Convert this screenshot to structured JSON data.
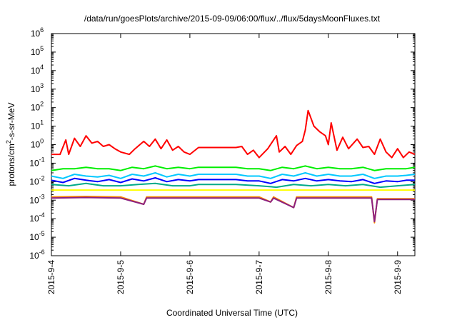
{
  "chart_data": {
    "type": "line",
    "title": "/data/run/goesPlots/archive/2015-09-09/06:00/flux/../flux/5daysMoonFluxes.txt",
    "xlabel": "Coordinated Universal Time (UTC)",
    "ylabel_main": "protons/cm",
    "ylabel_sup": "2",
    "ylabel_rest": "-s-sr-MeV",
    "yscale": "log",
    "ylim": [
      1e-06,
      1000000.0
    ],
    "y_ticks": [
      {
        "base": "10",
        "exp": "-6",
        "value": 1e-06
      },
      {
        "base": "10",
        "exp": "-5",
        "value": 1e-05
      },
      {
        "base": "10",
        "exp": "-4",
        "value": 0.0001
      },
      {
        "base": "10",
        "exp": "-3",
        "value": 0.001
      },
      {
        "base": "10",
        "exp": "-2",
        "value": 0.01
      },
      {
        "base": "10",
        "exp": "-1",
        "value": 0.1
      },
      {
        "base": "10",
        "exp": "0",
        "value": 1
      },
      {
        "base": "10",
        "exp": "1",
        "value": 10
      },
      {
        "base": "10",
        "exp": "2",
        "value": 100
      },
      {
        "base": "10",
        "exp": "3",
        "value": 1000
      },
      {
        "base": "10",
        "exp": "4",
        "value": 10000
      },
      {
        "base": "10",
        "exp": "5",
        "value": 100000
      },
      {
        "base": "10",
        "exp": "6",
        "value": 1000000
      }
    ],
    "xlim": [
      "2015-09-04 00:00",
      "2015-09-09 06:00"
    ],
    "x_ticks": [
      {
        "label": "2015-9-4",
        "date": "2015-09-04"
      },
      {
        "label": "2015-9-5",
        "date": "2015-09-05"
      },
      {
        "label": "2015-9-6",
        "date": "2015-09-06"
      },
      {
        "label": "2015-9-7",
        "date": "2015-09-07"
      },
      {
        "label": "2015-9-8",
        "date": "2015-09-08"
      },
      {
        "label": "2015-9-9",
        "date": "2015-09-09"
      }
    ],
    "grid": false,
    "series": [
      {
        "color": "#ff0000",
        "points": [
          [
            "2015-09-04 00:00",
            0.3
          ],
          [
            "2015-09-04 03:00",
            0.3
          ],
          [
            "2015-09-04 05:00",
            1.8
          ],
          [
            "2015-09-04 06:00",
            0.3
          ],
          [
            "2015-09-04 08:00",
            2.2
          ],
          [
            "2015-09-04 10:00",
            0.8
          ],
          [
            "2015-09-04 12:00",
            3.0
          ],
          [
            "2015-09-04 14:00",
            1.2
          ],
          [
            "2015-09-04 16:00",
            1.5
          ],
          [
            "2015-09-04 18:00",
            0.8
          ],
          [
            "2015-09-04 20:00",
            1.0
          ],
          [
            "2015-09-04 22:00",
            0.6
          ],
          [
            "2015-09-05 00:00",
            0.4
          ],
          [
            "2015-09-05 03:00",
            0.3
          ],
          [
            "2015-09-05 05:00",
            0.6
          ],
          [
            "2015-09-05 08:00",
            1.5
          ],
          [
            "2015-09-05 10:00",
            0.8
          ],
          [
            "2015-09-05 12:00",
            2.0
          ],
          [
            "2015-09-05 14:00",
            0.6
          ],
          [
            "2015-09-05 16:00",
            1.8
          ],
          [
            "2015-09-05 18:00",
            0.5
          ],
          [
            "2015-09-05 20:00",
            0.8
          ],
          [
            "2015-09-05 22:00",
            0.4
          ],
          [
            "2015-09-06 00:00",
            0.3
          ],
          [
            "2015-09-06 03:00",
            0.7
          ],
          [
            "2015-09-06 16:00",
            0.7
          ],
          [
            "2015-09-06 18:00",
            0.8
          ],
          [
            "2015-09-06 20:00",
            0.3
          ],
          [
            "2015-09-06 22:00",
            0.5
          ],
          [
            "2015-09-07 00:00",
            0.2
          ],
          [
            "2015-09-07 03:00",
            0.6
          ],
          [
            "2015-09-07 06:00",
            3.0
          ],
          [
            "2015-09-07 07:00",
            0.4
          ],
          [
            "2015-09-07 09:00",
            0.8
          ],
          [
            "2015-09-07 11:00",
            0.3
          ],
          [
            "2015-09-07 13:00",
            0.9
          ],
          [
            "2015-09-07 15:00",
            1.5
          ],
          [
            "2015-09-07 16:00",
            6.0
          ],
          [
            "2015-09-07 17:00",
            70
          ],
          [
            "2015-09-07 19:00",
            10
          ],
          [
            "2015-09-07 21:00",
            5.0
          ],
          [
            "2015-09-07 23:00",
            3.0
          ],
          [
            "2015-09-08 00:00",
            1.0
          ],
          [
            "2015-09-08 01:00",
            15
          ],
          [
            "2015-09-08 03:00",
            0.5
          ],
          [
            "2015-09-08 05:00",
            2.5
          ],
          [
            "2015-09-08 07:00",
            0.6
          ],
          [
            "2015-09-08 10:00",
            2.0
          ],
          [
            "2015-09-08 12:00",
            0.7
          ],
          [
            "2015-09-08 14:00",
            0.8
          ],
          [
            "2015-09-08 16:00",
            0.3
          ],
          [
            "2015-09-08 18:00",
            2.0
          ],
          [
            "2015-09-08 20:00",
            0.4
          ],
          [
            "2015-09-08 22:00",
            0.2
          ],
          [
            "2015-09-09 00:00",
            0.6
          ],
          [
            "2015-09-09 02:00",
            0.2
          ],
          [
            "2015-09-09 04:00",
            0.4
          ],
          [
            "2015-09-09 06:00",
            0.3
          ]
        ]
      },
      {
        "color": "#00ee00",
        "points": [
          [
            "2015-09-04 00:00",
            0.04
          ],
          [
            "2015-09-04 04:00",
            0.05
          ],
          [
            "2015-09-04 08:00",
            0.05
          ],
          [
            "2015-09-04 12:00",
            0.06
          ],
          [
            "2015-09-04 16:00",
            0.05
          ],
          [
            "2015-09-04 20:00",
            0.05
          ],
          [
            "2015-09-05 00:00",
            0.04
          ],
          [
            "2015-09-05 04:00",
            0.06
          ],
          [
            "2015-09-05 08:00",
            0.05
          ],
          [
            "2015-09-05 12:00",
            0.07
          ],
          [
            "2015-09-05 16:00",
            0.05
          ],
          [
            "2015-09-05 20:00",
            0.06
          ],
          [
            "2015-09-06 00:00",
            0.05
          ],
          [
            "2015-09-06 03:00",
            0.06
          ],
          [
            "2015-09-06 16:00",
            0.06
          ],
          [
            "2015-09-06 20:00",
            0.05
          ],
          [
            "2015-09-07 00:00",
            0.05
          ],
          [
            "2015-09-07 04:00",
            0.04
          ],
          [
            "2015-09-07 08:00",
            0.06
          ],
          [
            "2015-09-07 12:00",
            0.05
          ],
          [
            "2015-09-07 16:00",
            0.07
          ],
          [
            "2015-09-07 20:00",
            0.05
          ],
          [
            "2015-09-08 00:00",
            0.06
          ],
          [
            "2015-09-08 04:00",
            0.05
          ],
          [
            "2015-09-08 08:00",
            0.05
          ],
          [
            "2015-09-08 12:00",
            0.06
          ],
          [
            "2015-09-08 16:00",
            0.04
          ],
          [
            "2015-09-08 20:00",
            0.05
          ],
          [
            "2015-09-09 00:00",
            0.05
          ],
          [
            "2015-09-09 03:00",
            0.05
          ],
          [
            "2015-09-09 06:00",
            0.06
          ]
        ]
      },
      {
        "color": "#00c8ff",
        "points": [
          [
            "2015-09-04 00:00",
            0.02
          ],
          [
            "2015-09-04 04:00",
            0.015
          ],
          [
            "2015-09-04 08:00",
            0.025
          ],
          [
            "2015-09-04 12:00",
            0.02
          ],
          [
            "2015-09-04 16:00",
            0.018
          ],
          [
            "2015-09-04 20:00",
            0.022
          ],
          [
            "2015-09-05 00:00",
            0.015
          ],
          [
            "2015-09-05 04:00",
            0.025
          ],
          [
            "2015-09-05 08:00",
            0.02
          ],
          [
            "2015-09-05 12:00",
            0.03
          ],
          [
            "2015-09-05 16:00",
            0.018
          ],
          [
            "2015-09-05 20:00",
            0.025
          ],
          [
            "2015-09-06 00:00",
            0.02
          ],
          [
            "2015-09-06 03:00",
            0.025
          ],
          [
            "2015-09-06 16:00",
            0.025
          ],
          [
            "2015-09-06 20:00",
            0.02
          ],
          [
            "2015-09-07 00:00",
            0.02
          ],
          [
            "2015-09-07 04:00",
            0.015
          ],
          [
            "2015-09-07 08:00",
            0.025
          ],
          [
            "2015-09-07 12:00",
            0.02
          ],
          [
            "2015-09-07 16:00",
            0.03
          ],
          [
            "2015-09-07 20:00",
            0.02
          ],
          [
            "2015-09-08 00:00",
            0.025
          ],
          [
            "2015-09-08 04:00",
            0.02
          ],
          [
            "2015-09-08 08:00",
            0.02
          ],
          [
            "2015-09-08 12:00",
            0.025
          ],
          [
            "2015-09-08 16:00",
            0.015
          ],
          [
            "2015-09-08 20:00",
            0.02
          ],
          [
            "2015-09-09 00:00",
            0.02
          ],
          [
            "2015-09-09 03:00",
            0.022
          ],
          [
            "2015-09-09 06:00",
            0.025
          ]
        ]
      },
      {
        "color": "#0000ff",
        "points": [
          [
            "2015-09-04 00:00",
            0.012
          ],
          [
            "2015-09-04 04:00",
            0.009
          ],
          [
            "2015-09-04 08:00",
            0.015
          ],
          [
            "2015-09-04 12:00",
            0.012
          ],
          [
            "2015-09-04 16:00",
            0.01
          ],
          [
            "2015-09-04 20:00",
            0.013
          ],
          [
            "2015-09-05 00:00",
            0.009
          ],
          [
            "2015-09-05 04:00",
            0.014
          ],
          [
            "2015-09-05 08:00",
            0.011
          ],
          [
            "2015-09-05 12:00",
            0.016
          ],
          [
            "2015-09-05 16:00",
            0.01
          ],
          [
            "2015-09-05 20:00",
            0.013
          ],
          [
            "2015-09-06 00:00",
            0.011
          ],
          [
            "2015-09-06 03:00",
            0.013
          ],
          [
            "2015-09-06 16:00",
            0.013
          ],
          [
            "2015-09-06 20:00",
            0.011
          ],
          [
            "2015-09-07 00:00",
            0.011
          ],
          [
            "2015-09-07 04:00",
            0.008
          ],
          [
            "2015-09-07 08:00",
            0.013
          ],
          [
            "2015-09-07 12:00",
            0.011
          ],
          [
            "2015-09-07 16:00",
            0.015
          ],
          [
            "2015-09-07 20:00",
            0.011
          ],
          [
            "2015-09-08 00:00",
            0.013
          ],
          [
            "2015-09-08 04:00",
            0.011
          ],
          [
            "2015-09-08 08:00",
            0.01
          ],
          [
            "2015-09-08 12:00",
            0.013
          ],
          [
            "2015-09-08 16:00",
            0.008
          ],
          [
            "2015-09-08 20:00",
            0.011
          ],
          [
            "2015-09-09 00:00",
            0.01
          ],
          [
            "2015-09-09 03:00",
            0.012
          ],
          [
            "2015-09-09 06:00",
            0.012
          ]
        ]
      },
      {
        "color": "#00aa88",
        "points": [
          [
            "2015-09-04 00:00",
            0.007
          ],
          [
            "2015-09-04 06:00",
            0.006
          ],
          [
            "2015-09-04 12:00",
            0.008
          ],
          [
            "2015-09-04 18:00",
            0.006
          ],
          [
            "2015-09-05 00:00",
            0.006
          ],
          [
            "2015-09-05 06:00",
            0.007
          ],
          [
            "2015-09-05 12:00",
            0.008
          ],
          [
            "2015-09-05 18:00",
            0.006
          ],
          [
            "2015-09-06 00:00",
            0.006
          ],
          [
            "2015-09-06 03:00",
            0.007
          ],
          [
            "2015-09-06 16:00",
            0.007
          ],
          [
            "2015-09-07 00:00",
            0.006
          ],
          [
            "2015-09-07 06:00",
            0.005
          ],
          [
            "2015-09-07 12:00",
            0.007
          ],
          [
            "2015-09-07 18:00",
            0.006
          ],
          [
            "2015-09-08 00:00",
            0.007
          ],
          [
            "2015-09-08 06:00",
            0.006
          ],
          [
            "2015-09-08 12:00",
            0.007
          ],
          [
            "2015-09-08 18:00",
            0.005
          ],
          [
            "2015-09-09 00:00",
            0.006
          ],
          [
            "2015-09-09 06:00",
            0.007
          ]
        ]
      },
      {
        "color": "#ffff00",
        "points": [
          [
            "2015-09-04 00:00",
            0.0035
          ],
          [
            "2015-09-05 00:00",
            0.0035
          ],
          [
            "2015-09-06 00:00",
            0.0035
          ],
          [
            "2015-09-07 00:00",
            0.0035
          ],
          [
            "2015-09-08 00:00",
            0.0035
          ],
          [
            "2015-09-09 00:00",
            0.0035
          ],
          [
            "2015-09-09 06:00",
            0.0035
          ]
        ]
      },
      {
        "color": "#ff8800",
        "points": [
          [
            "2015-09-04 00:00",
            0.0015
          ],
          [
            "2015-09-04 12:00",
            0.0016
          ],
          [
            "2015-09-05 00:00",
            0.0015
          ],
          [
            "2015-09-05 08:00",
            0.0006
          ],
          [
            "2015-09-05 09:00",
            0.0015
          ],
          [
            "2015-09-06 00:00",
            0.0015
          ],
          [
            "2015-09-07 00:00",
            0.0015
          ],
          [
            "2015-09-07 04:00",
            0.0008
          ],
          [
            "2015-09-07 05:00",
            0.0015
          ],
          [
            "2015-09-07 12:00",
            0.0004
          ],
          [
            "2015-09-07 13:00",
            0.0015
          ],
          [
            "2015-09-08 00:00",
            0.0015
          ],
          [
            "2015-09-08 15:00",
            0.0015
          ],
          [
            "2015-09-08 16:00",
            6e-05
          ],
          [
            "2015-09-08 17:00",
            0.0012
          ],
          [
            "2015-09-09 00:00",
            0.0012
          ],
          [
            "2015-09-09 06:00",
            0.0012
          ]
        ]
      },
      {
        "color": "#8b2080",
        "points": [
          [
            "2015-09-04 00:00",
            0.0013
          ],
          [
            "2015-09-04 12:00",
            0.0014
          ],
          [
            "2015-09-05 00:00",
            0.0013
          ],
          [
            "2015-09-05 08:00",
            0.0006
          ],
          [
            "2015-09-05 09:00",
            0.0013
          ],
          [
            "2015-09-06 00:00",
            0.0013
          ],
          [
            "2015-09-07 00:00",
            0.0013
          ],
          [
            "2015-09-07 04:00",
            0.0008
          ],
          [
            "2015-09-07 05:00",
            0.0013
          ],
          [
            "2015-09-07 12:00",
            0.0004
          ],
          [
            "2015-09-07 13:00",
            0.0013
          ],
          [
            "2015-09-08 00:00",
            0.0013
          ],
          [
            "2015-09-08 15:00",
            0.0013
          ],
          [
            "2015-09-08 16:00",
            7e-05
          ],
          [
            "2015-09-08 17:00",
            0.0011
          ],
          [
            "2015-09-09 00:00",
            0.0011
          ],
          [
            "2015-09-09 06:00",
            0.0011
          ]
        ]
      }
    ]
  }
}
